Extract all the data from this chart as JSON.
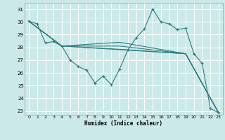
{
  "xlabel": "Humidex (Indice chaleur)",
  "bg_color": "#cce9e9",
  "grid_color": "#ffffff",
  "line_color": "#2e7d7d",
  "xlim": [
    -0.5,
    23.5
  ],
  "ylim": [
    22.7,
    31.5
  ],
  "yticks": [
    23,
    24,
    25,
    26,
    27,
    28,
    29,
    30,
    31
  ],
  "xticks": [
    0,
    1,
    2,
    3,
    4,
    5,
    6,
    7,
    8,
    9,
    10,
    11,
    12,
    13,
    14,
    15,
    16,
    17,
    18,
    19,
    20,
    21,
    22,
    23
  ],
  "series": [
    {
      "x": [
        0,
        1,
        2,
        3,
        4,
        5,
        6,
        7,
        8,
        9,
        10,
        11,
        12,
        13,
        14,
        15,
        16,
        17,
        18,
        19,
        20,
        21,
        22,
        23
      ],
      "y": [
        30.05,
        29.85,
        28.35,
        28.45,
        28.1,
        27.0,
        26.5,
        26.2,
        25.2,
        25.75,
        25.05,
        26.3,
        27.8,
        28.75,
        29.45,
        31.0,
        30.0,
        29.85,
        29.4,
        29.5,
        27.5,
        26.75,
        23.2,
        22.85
      ],
      "marker": true
    },
    {
      "x": [
        0,
        4,
        19,
        23
      ],
      "y": [
        30.05,
        28.1,
        27.5,
        22.85
      ],
      "marker": false
    },
    {
      "x": [
        0,
        4,
        11,
        19,
        23
      ],
      "y": [
        30.05,
        28.1,
        27.85,
        27.5,
        22.85
      ],
      "marker": false
    },
    {
      "x": [
        0,
        4,
        11,
        19,
        23
      ],
      "y": [
        30.05,
        28.1,
        28.1,
        27.5,
        22.85
      ],
      "marker": false
    },
    {
      "x": [
        0,
        4,
        11,
        19,
        23
      ],
      "y": [
        30.05,
        28.1,
        28.4,
        27.5,
        22.85
      ],
      "marker": false
    }
  ]
}
